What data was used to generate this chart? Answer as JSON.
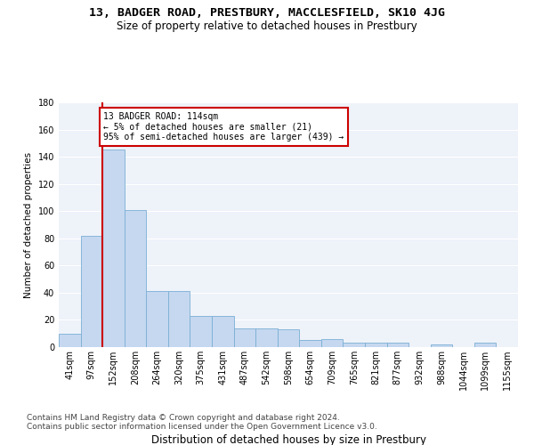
{
  "title": "13, BADGER ROAD, PRESTBURY, MACCLESFIELD, SK10 4JG",
  "subtitle": "Size of property relative to detached houses in Prestbury",
  "xlabel": "Distribution of detached houses by size in Prestbury",
  "ylabel": "Number of detached properties",
  "categories": [
    "41sqm",
    "97sqm",
    "152sqm",
    "208sqm",
    "264sqm",
    "320sqm",
    "375sqm",
    "431sqm",
    "487sqm",
    "542sqm",
    "598sqm",
    "654sqm",
    "709sqm",
    "765sqm",
    "821sqm",
    "877sqm",
    "932sqm",
    "988sqm",
    "1044sqm",
    "1099sqm",
    "1155sqm"
  ],
  "values": [
    10,
    82,
    145,
    101,
    41,
    41,
    23,
    23,
    14,
    14,
    13,
    5,
    6,
    3,
    3,
    3,
    0,
    2,
    0,
    3,
    0
  ],
  "bar_color": "#c5d8f0",
  "bar_edge_color": "#7aafd4",
  "highlight_line_color": "#cc0000",
  "highlight_bar_index": 1,
  "annotation_text": "13 BADGER ROAD: 114sqm\n← 5% of detached houses are smaller (21)\n95% of semi-detached houses are larger (439) →",
  "annotation_box_color": "#cc0000",
  "ylim": [
    0,
    180
  ],
  "yticks": [
    0,
    20,
    40,
    60,
    80,
    100,
    120,
    140,
    160,
    180
  ],
  "footer_text": "Contains HM Land Registry data © Crown copyright and database right 2024.\nContains public sector information licensed under the Open Government Licence v3.0.",
  "background_color": "#eef2f9",
  "grid_color": "#ffffff",
  "title_fontsize": 9.5,
  "subtitle_fontsize": 8.5,
  "xlabel_fontsize": 8.5,
  "ylabel_fontsize": 7.5,
  "tick_fontsize": 7,
  "footer_fontsize": 6.5
}
